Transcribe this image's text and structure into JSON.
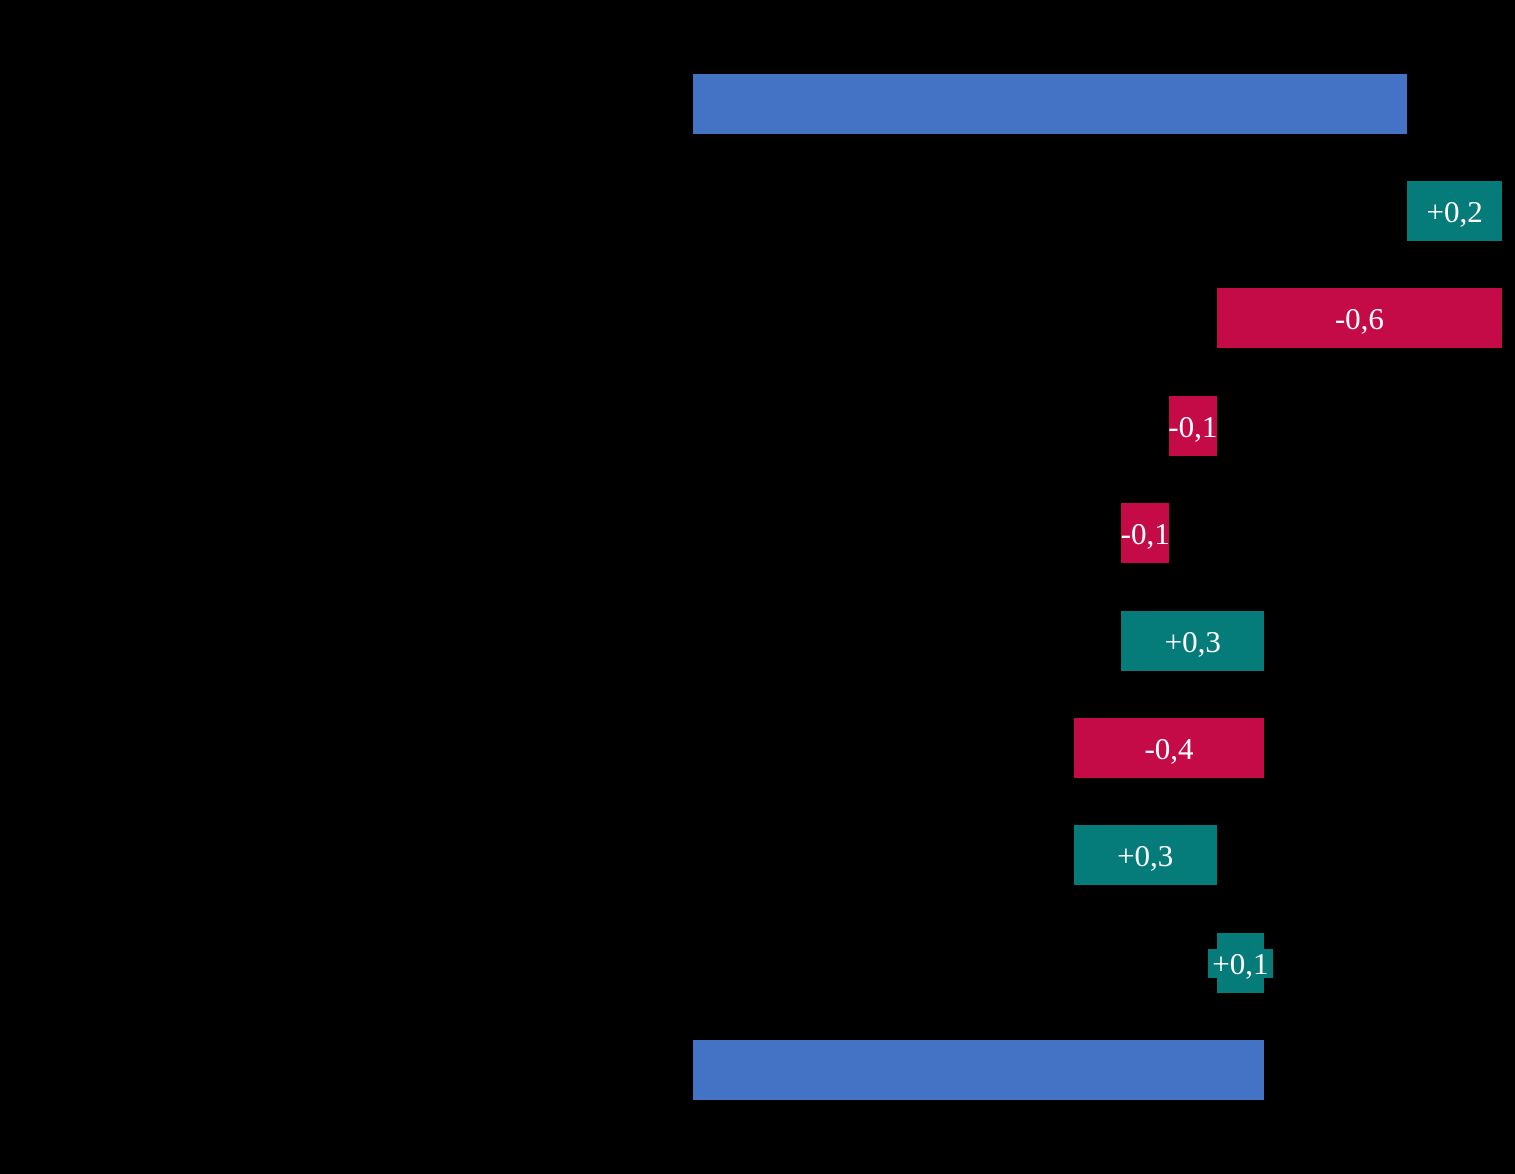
{
  "chart_data": {
    "type": "bar",
    "subtype": "waterfall",
    "orientation": "horizontal",
    "title": "",
    "xlabel": "",
    "ylabel": "",
    "xlim": [
      0,
      1.73
    ],
    "grid": false,
    "legend": false,
    "background_color": "#000000",
    "colors": {
      "total": "#4472c4",
      "increase": "#067c7a",
      "decrease": "#c50b47",
      "label_text": "#ffffff"
    },
    "start_total": 1.5,
    "steps": [
      0.2,
      -0.6,
      -0.1,
      -0.1,
      0.3,
      -0.4,
      0.3,
      0.1
    ],
    "end_total": 1.2,
    "bars": [
      {
        "row": 0,
        "kind": "total",
        "from": 0.0,
        "to": 1.5,
        "label": ""
      },
      {
        "row": 1,
        "kind": "increase",
        "from": 1.5,
        "to": 1.7,
        "label": "+0,2"
      },
      {
        "row": 2,
        "kind": "decrease",
        "from": 1.1,
        "to": 1.7,
        "label": "-0,6"
      },
      {
        "row": 3,
        "kind": "decrease",
        "from": 1.0,
        "to": 1.1,
        "label": "-0,1"
      },
      {
        "row": 4,
        "kind": "decrease",
        "from": 0.9,
        "to": 1.0,
        "label": "-0,1"
      },
      {
        "row": 5,
        "kind": "increase",
        "from": 0.9,
        "to": 1.2,
        "label": "+0,3"
      },
      {
        "row": 6,
        "kind": "decrease",
        "from": 0.8,
        "to": 1.2,
        "label": "-0,4"
      },
      {
        "row": 7,
        "kind": "increase",
        "from": 0.8,
        "to": 1.1,
        "label": "+0,3"
      },
      {
        "row": 8,
        "kind": "increase",
        "from": 1.1,
        "to": 1.2,
        "label": "+0,1",
        "label_filled": true
      },
      {
        "row": 9,
        "kind": "total",
        "from": 0.0,
        "to": 1.2,
        "label": ""
      }
    ]
  }
}
